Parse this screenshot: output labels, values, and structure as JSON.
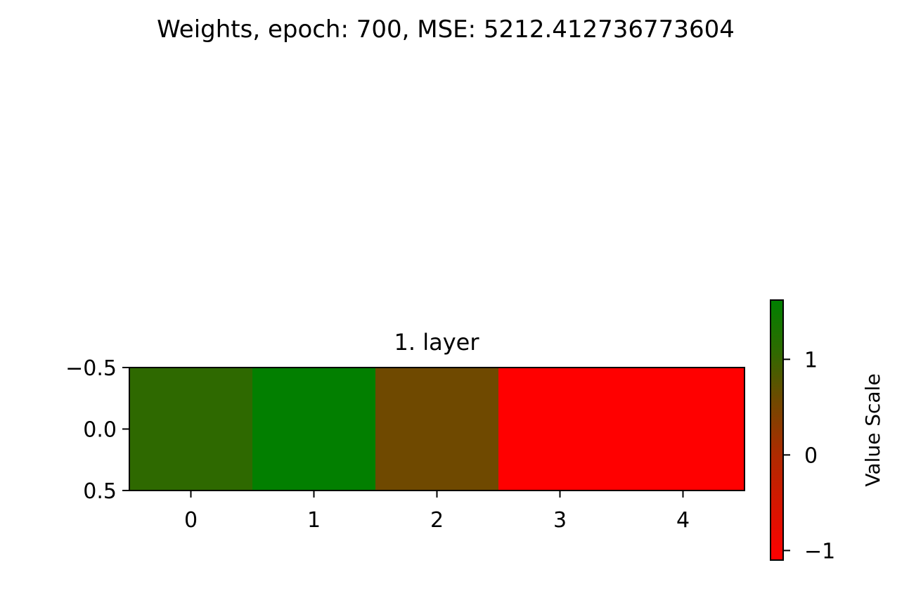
{
  "chart_data": {
    "type": "heatmap",
    "suptitle": "Weights, epoch: 700, MSE: 5212.412736773604",
    "title": "1. layer",
    "x": [
      0,
      1,
      2,
      3,
      4
    ],
    "y": [
      0
    ],
    "values": [
      [
        1.05,
        1.6,
        0.25,
        -1.2,
        -1.2
      ]
    ],
    "xticks": [
      0,
      1,
      2,
      3,
      4
    ],
    "xtick_labels": [
      "0",
      "1",
      "2",
      "3",
      "4"
    ],
    "yticks": [
      -0.5,
      0.0,
      0.5
    ],
    "ytick_labels": [
      "−0.5",
      "0.0",
      "0.5"
    ],
    "xlim": [
      -0.5,
      4.5
    ],
    "ylim": [
      0.5,
      -0.5
    ],
    "colormap": {
      "low": "#ff0000",
      "mid": "#6e4a00",
      "high": "#008000"
    },
    "colorbar": {
      "label": "Value Scale",
      "vmin": -1.1,
      "vmax": 1.62,
      "ticks": [
        -1,
        0,
        1
      ],
      "tick_labels": [
        "−1",
        "0",
        "1"
      ]
    },
    "grid": false
  }
}
